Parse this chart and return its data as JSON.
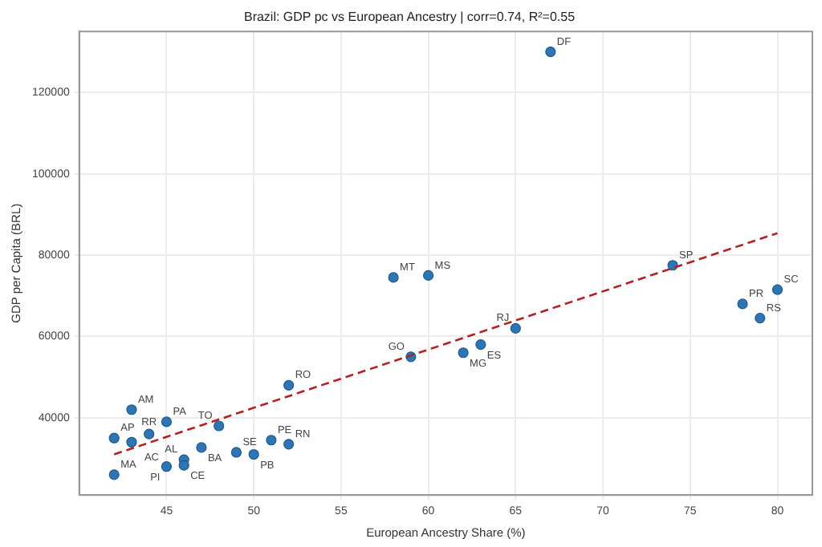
{
  "chart_data": {
    "type": "scatter",
    "title": "Brazil: GDP pc vs European Ancestry | corr=0.74, R²=0.55",
    "xlabel": "European Ancestry Share (%)",
    "ylabel": "GDP per Capita (BRL)",
    "xlim": [
      40,
      82
    ],
    "xticks": [
      45,
      50,
      55,
      60,
      65,
      70,
      75,
      80
    ],
    "ylim": [
      21000,
      135000
    ],
    "yticks": [
      40000,
      60000,
      80000,
      100000,
      120000
    ],
    "grid": true,
    "legend": false,
    "marker": "circle",
    "series": [
      {
        "color": "#2e75b6",
        "x": [
          42,
          42,
          43,
          43,
          44,
          45,
          45,
          46,
          46,
          47,
          48,
          49,
          50,
          51,
          52,
          52,
          59,
          58,
          60,
          62,
          63,
          65,
          74,
          78,
          79,
          80,
          67
        ],
        "values": [
          26000,
          35000,
          42000,
          34000,
          36000,
          39000,
          28000,
          29700,
          28300,
          32700,
          38000,
          31500,
          31000,
          34500,
          33500,
          48000,
          55000,
          74500,
          75000,
          56000,
          58000,
          62000,
          77500,
          68000,
          64500,
          71500,
          130000
        ]
      },
      {
        "type": "line",
        "color": "#b22222",
        "line_style": "dashed",
        "marker": "none",
        "x": [
          42,
          80
        ],
        "values": [
          31000,
          85400
        ]
      }
    ],
    "annotations": [
      {
        "text": "MA",
        "x": 42,
        "y": 26000
      },
      {
        "text": "AP",
        "x": 42,
        "y": 35000
      },
      {
        "text": "AM",
        "x": 43,
        "y": 42000
      },
      {
        "text": "AC",
        "x": 43,
        "y": 34000
      },
      {
        "text": "RR",
        "x": 44,
        "y": 36000
      },
      {
        "text": "PA",
        "x": 45,
        "y": 39000
      },
      {
        "text": "PI",
        "x": 45,
        "y": 28000
      },
      {
        "text": "AL",
        "x": 46,
        "y": 29700
      },
      {
        "text": "CE",
        "x": 46,
        "y": 28300
      },
      {
        "text": "BA",
        "x": 47,
        "y": 32700
      },
      {
        "text": "TO",
        "x": 48,
        "y": 38000
      },
      {
        "text": "SE",
        "x": 49,
        "y": 31500
      },
      {
        "text": "PB",
        "x": 50,
        "y": 31000
      },
      {
        "text": "PE",
        "x": 51,
        "y": 34500
      },
      {
        "text": "RN",
        "x": 52,
        "y": 33500
      },
      {
        "text": "RO",
        "x": 52,
        "y": 48000
      },
      {
        "text": "GO",
        "x": 59,
        "y": 55000
      },
      {
        "text": "MT",
        "x": 58,
        "y": 74500
      },
      {
        "text": "MS",
        "x": 60,
        "y": 75000
      },
      {
        "text": "MG",
        "x": 62,
        "y": 56000
      },
      {
        "text": "ES",
        "x": 63,
        "y": 58000
      },
      {
        "text": "RJ",
        "x": 65,
        "y": 62000
      },
      {
        "text": "SP",
        "x": 74,
        "y": 77500
      },
      {
        "text": "PR",
        "x": 78,
        "y": 68000
      },
      {
        "text": "RS",
        "x": 79,
        "y": 64500
      },
      {
        "text": "SC",
        "x": 80,
        "y": 71500
      },
      {
        "text": "DF",
        "x": 67,
        "y": 130000
      }
    ]
  }
}
